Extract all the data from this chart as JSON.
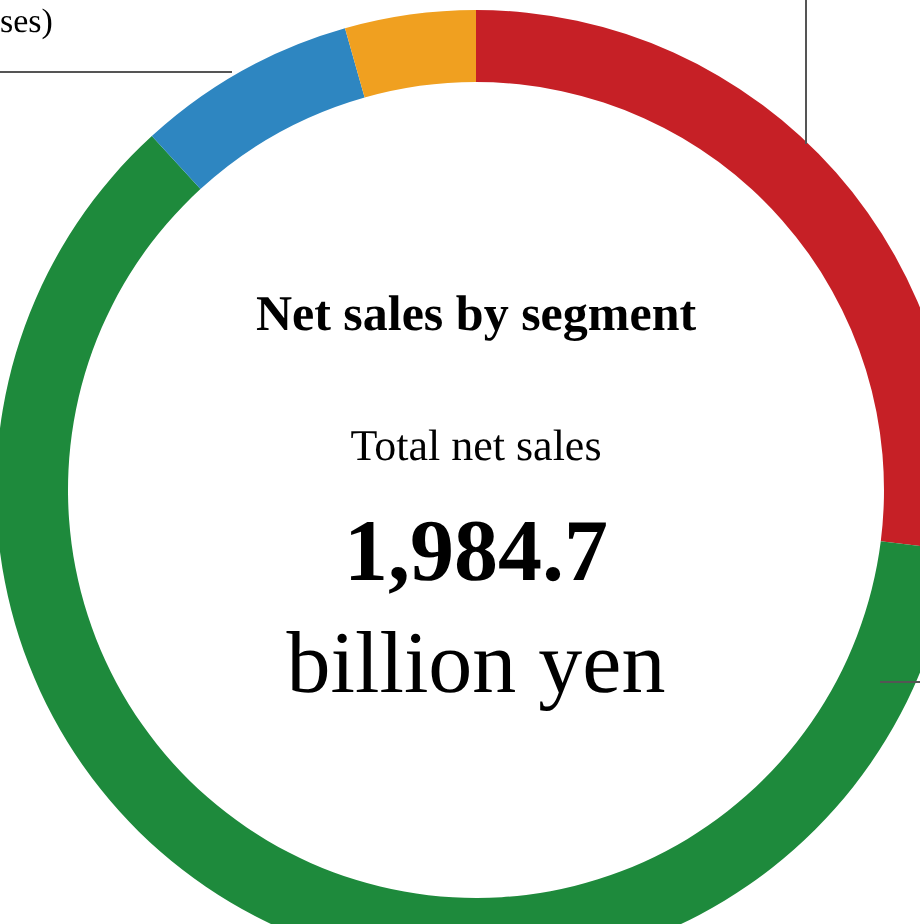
{
  "chart_data": {
    "type": "donut",
    "title": "Net sales by segment",
    "categories": [
      null,
      null,
      null,
      null
    ],
    "values": [
      27,
      61.2,
      7.4,
      4.4
    ],
    "colors": [
      "#c62026",
      "#1e8a3c",
      "#2e86c1",
      "#f0a020"
    ],
    "annotations": [
      "Total net sales",
      "1,984.7",
      "billion yen",
      "ses)"
    ]
  }
}
